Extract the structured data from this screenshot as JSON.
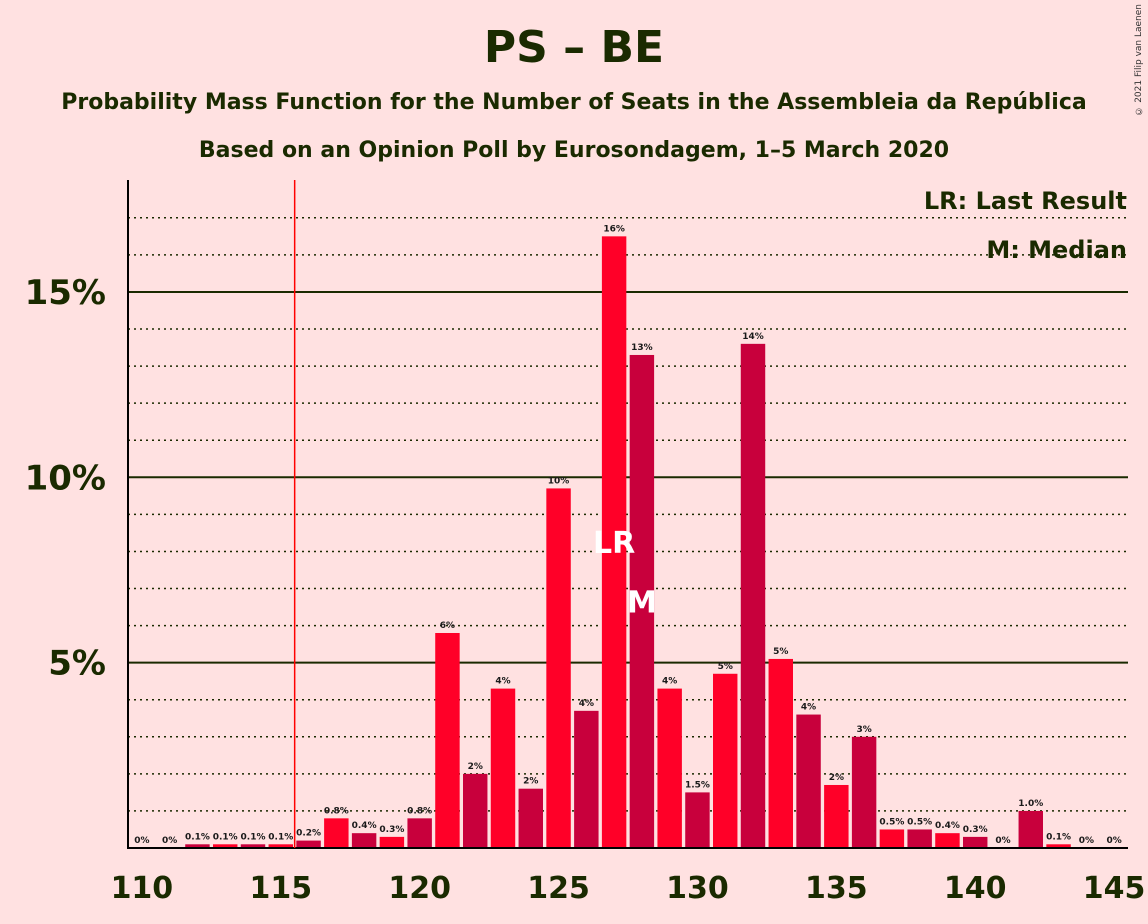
{
  "title": "PS – BE",
  "subtitle1": "Probability Mass Function for the Number of Seats in the Assembleia da República",
  "subtitle2": "Based on an Opinion Poll by Eurosondagem, 1–5 March 2020",
  "copyright": "© 2021 Filip van Laenen",
  "legend": {
    "lr": "LR: Last Result",
    "m": "M: Median"
  },
  "markers": {
    "lr": "LR",
    "m": "M"
  },
  "colors": {
    "bar_dark": "#C8003C",
    "bar_light": "#FF0028",
    "background": "#FFE1E1",
    "majority_line": "#FF0000",
    "grid": "#1a2a00"
  },
  "chart_data": {
    "type": "bar",
    "x": [
      110,
      111,
      112,
      113,
      114,
      115,
      116,
      117,
      118,
      119,
      120,
      121,
      122,
      123,
      124,
      125,
      126,
      127,
      128,
      129,
      130,
      131,
      132,
      133,
      134,
      135,
      136,
      137,
      138,
      139,
      140,
      141,
      142,
      143,
      144,
      145
    ],
    "values": [
      0,
      0,
      0.1,
      0.1,
      0.1,
      0.1,
      0.2,
      0.8,
      0.4,
      0.3,
      0.8,
      5.8,
      2,
      4.3,
      1.6,
      9.7,
      3.7,
      16.5,
      13.3,
      4.3,
      1.5,
      4.7,
      13.6,
      5.1,
      3.6,
      1.7,
      3.0,
      0.5,
      0.5,
      0.4,
      0.3,
      0,
      1.0,
      0.1,
      0,
      0
    ],
    "data_labels": [
      "0%",
      "0%",
      "0.1%",
      "0.1%",
      "0.1%",
      "0.1%",
      "0.2%",
      "0.8%",
      "0.4%",
      "0.3%",
      "0.8%",
      "6%",
      "2%",
      "4%",
      "2%",
      "10%",
      "4%",
      "16%",
      "13%",
      "4%",
      "1.5%",
      "5%",
      "14%",
      "5%",
      "4%",
      "2%",
      "3%",
      "0.5%",
      "0.5%",
      "0.4%",
      "0.3%",
      "0%",
      "1.0%",
      "0.1%",
      "0%",
      "0%"
    ],
    "x_ticks": [
      110,
      115,
      120,
      125,
      130,
      135,
      140,
      145
    ],
    "y_ticks": [
      {
        "value": 5,
        "label": "5%"
      },
      {
        "value": 10,
        "label": "10%"
      },
      {
        "value": 15,
        "label": "15%"
      }
    ],
    "ylim": [
      0,
      17.7
    ],
    "majority_line_x": 116,
    "last_result_x": 127,
    "median_x": 128,
    "grid": true,
    "legend_position": "top-right"
  }
}
